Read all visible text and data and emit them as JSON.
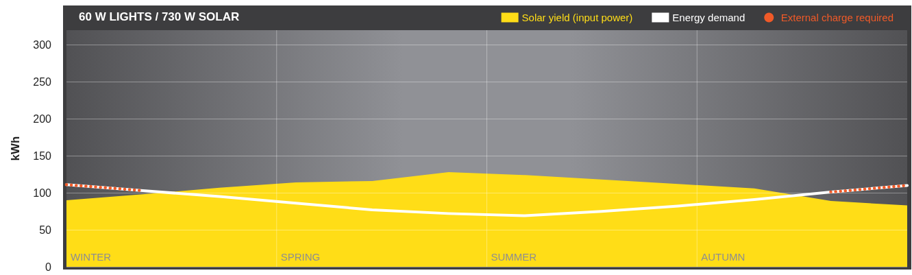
{
  "chart_data": {
    "type": "area",
    "title": "60 W LIGHTS / 730 W SOLAR",
    "ylabel": "kWh",
    "categories": [
      null,
      null,
      null,
      null,
      null,
      null,
      null,
      null,
      null,
      null,
      null,
      null
    ],
    "annotations": [
      "WINTER",
      "SPRING",
      "SUMMER",
      "AUTUMN"
    ],
    "ylim": [
      0,
      320
    ],
    "yticks": [
      0,
      50,
      100,
      150,
      200,
      250,
      300
    ],
    "grid": "y",
    "legend": "top right",
    "series": [
      {
        "name": "Solar yield (input power)",
        "color": "#ffdd17",
        "values": [
          90,
          98,
          107,
          114,
          116,
          128,
          124,
          118,
          112,
          106,
          89,
          83
        ]
      },
      {
        "name": "Energy demand",
        "type": "line",
        "color": "#ffffff",
        "values": [
          111,
          103,
          95,
          86,
          77,
          72,
          69,
          75,
          82,
          91,
          101,
          110
        ]
      },
      {
        "name": "External charge required",
        "type": "line",
        "color": "#f05a28",
        "line_style": "dotted",
        "values": [
          111,
          103,
          null,
          null,
          null,
          null,
          null,
          null,
          null,
          null,
          101,
          110
        ]
      }
    ]
  }
}
